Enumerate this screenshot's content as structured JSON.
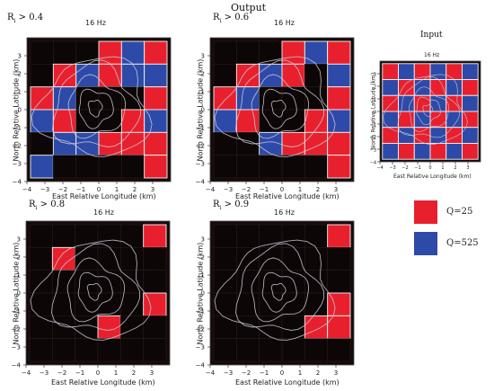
{
  "header": {
    "title": "Output"
  },
  "frequency_label": "16 Hz",
  "axes": {
    "xlabel": "East Relative Longitude (km)",
    "ylabel": "North Relative Latitude (km)",
    "ticks": [
      "−4",
      "−3",
      "−2",
      "−1",
      "0",
      "1",
      "2",
      "3"
    ],
    "range": [
      -4,
      4
    ]
  },
  "colors": {
    "red": "#e8202e",
    "blue": "#2e4aa8",
    "black": "#0d0606",
    "dim_red": "#1c0808",
    "dim_blue": "#0a0d1c"
  },
  "panels": [
    {
      "id": "r04",
      "threshold_label": "R",
      "threshold_sub": "i",
      "threshold_value": " > 0.4",
      "grid": [
        [
          "K",
          "K",
          "K",
          "R",
          "B",
          "R"
        ],
        [
          "K",
          "R",
          "B",
          "R",
          "B",
          "B"
        ],
        [
          "R",
          "B",
          "K",
          "K",
          "K",
          "R"
        ],
        [
          "B",
          "R",
          "K",
          "K",
          "R",
          "B"
        ],
        [
          "K",
          "B",
          "B",
          "R",
          "R",
          "R"
        ],
        [
          "B",
          "K",
          "K",
          "K",
          "K",
          "R"
        ]
      ]
    },
    {
      "id": "r06",
      "threshold_label": "R",
      "threshold_sub": "i",
      "threshold_value": " > 0.6",
      "grid": [
        [
          "K",
          "K",
          "K",
          "R",
          "B",
          "R"
        ],
        [
          "K",
          "R",
          "B",
          "R",
          "K",
          "B"
        ],
        [
          "R",
          "B",
          "K",
          "K",
          "K",
          "R"
        ],
        [
          "B",
          "R",
          "K",
          "K",
          "R",
          "B"
        ],
        [
          "K",
          "K",
          "B",
          "R",
          "R",
          "R"
        ],
        [
          "K",
          "K",
          "K",
          "K",
          "K",
          "R"
        ]
      ]
    },
    {
      "id": "r08",
      "threshold_label": "R",
      "threshold_sub": "i",
      "threshold_value": " > 0.8",
      "grid": [
        [
          "K",
          "K",
          "K",
          "K",
          "K",
          "R"
        ],
        [
          "K",
          "R",
          "K",
          "K",
          "K",
          "K"
        ],
        [
          "K",
          "K",
          "K",
          "K",
          "K",
          "K"
        ],
        [
          "K",
          "K",
          "K",
          "K",
          "K",
          "R"
        ],
        [
          "K",
          "K",
          "K",
          "R",
          "K",
          "K"
        ],
        [
          "K",
          "K",
          "K",
          "K",
          "K",
          "K"
        ]
      ]
    },
    {
      "id": "r09",
      "threshold_label": "R",
      "threshold_sub": "i",
      "threshold_value": " > 0.9",
      "grid": [
        [
          "K",
          "K",
          "K",
          "K",
          "K",
          "R"
        ],
        [
          "K",
          "K",
          "K",
          "K",
          "K",
          "K"
        ],
        [
          "K",
          "K",
          "K",
          "K",
          "K",
          "K"
        ],
        [
          "K",
          "K",
          "K",
          "K",
          "K",
          "R"
        ],
        [
          "K",
          "K",
          "K",
          "K",
          "R",
          "R"
        ],
        [
          "K",
          "K",
          "K",
          "K",
          "K",
          "K"
        ]
      ]
    },
    {
      "id": "input",
      "title": "Input",
      "grid": [
        [
          "R",
          "B",
          "R",
          "B",
          "R",
          "B"
        ],
        [
          "B",
          "R",
          "B",
          "R",
          "B",
          "R"
        ],
        [
          "R",
          "B",
          "R",
          "B",
          "R",
          "B"
        ],
        [
          "B",
          "R",
          "B",
          "R",
          "B",
          "R"
        ],
        [
          "R",
          "B",
          "R",
          "B",
          "R",
          "B"
        ],
        [
          "B",
          "R",
          "B",
          "R",
          "B",
          "R"
        ]
      ]
    }
  ],
  "legend": [
    {
      "label": "Q=25",
      "color": "#e8202e"
    },
    {
      "label": "Q=525",
      "color": "#2e4aa8"
    }
  ]
}
